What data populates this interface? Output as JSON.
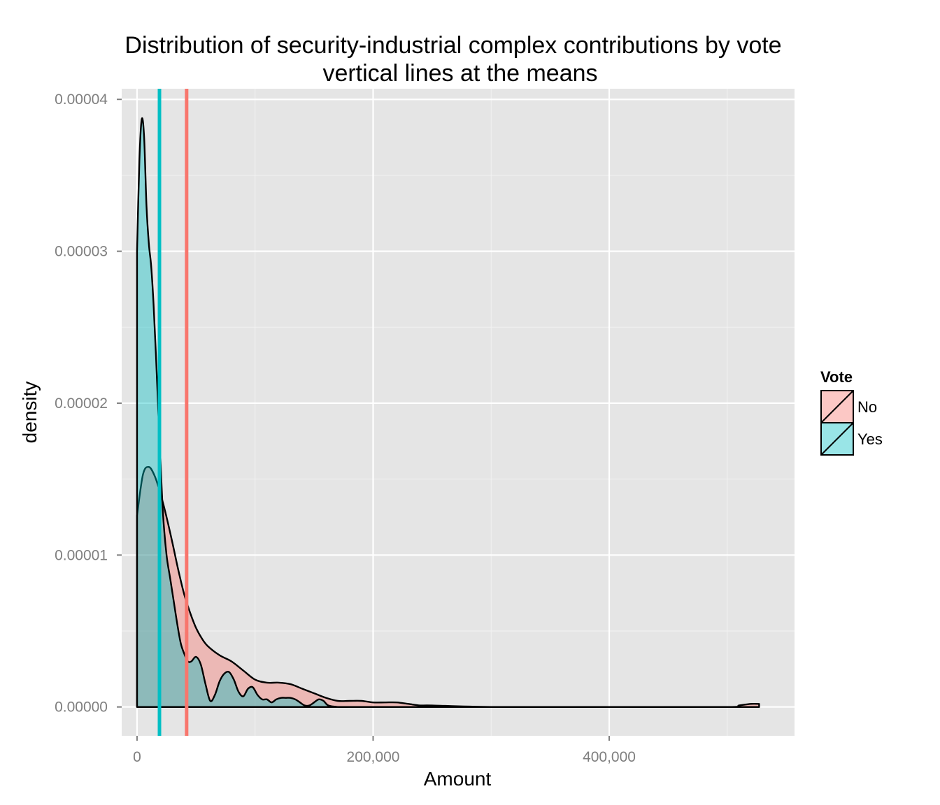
{
  "chart_data": {
    "type": "area",
    "title": "Distribution of security-industrial complex contributions by vote",
    "subtitle": "vertical lines at the means",
    "xlabel": "Amount",
    "ylabel": "density",
    "xlim": [
      -13000,
      557000
    ],
    "ylim": [
      -1.9e-06,
      4.07e-05
    ],
    "x_ticks": [
      0,
      200000,
      400000
    ],
    "x_tick_labels": [
      "0",
      "200,000",
      "400,000"
    ],
    "y_ticks": [
      0,
      1e-05,
      2e-05,
      3e-05,
      4e-05
    ],
    "y_tick_labels": [
      "0.00000",
      "0.00001",
      "0.00002",
      "0.00003",
      "0.00004"
    ],
    "grid": true,
    "legend": {
      "title": "Vote",
      "position": "right"
    },
    "series": [
      {
        "name": "No",
        "color": "#F8766D",
        "fill": "#F8766D",
        "fill_opacity": 0.4,
        "mean": 42000,
        "x": [
          0,
          5000,
          10000,
          15000,
          20000,
          25000,
          30000,
          35000,
          40000,
          45000,
          50000,
          55000,
          60000,
          70000,
          80000,
          90000,
          100000,
          110000,
          120000,
          130000,
          140000,
          150000,
          160000,
          170000,
          180000,
          190000,
          200000,
          210000,
          220000,
          230000,
          240000,
          250000,
          300000,
          400000,
          500000,
          510000,
          520000,
          527000
        ],
        "y": [
          1.26e-05,
          1.53e-05,
          1.58e-05,
          1.52e-05,
          1.4e-05,
          1.25e-05,
          1.08e-05,
          9e-06,
          7.4e-06,
          6.2e-06,
          5.2e-06,
          4.5e-06,
          4e-06,
          3.4e-06,
          3e-06,
          2.4e-06,
          1.8e-06,
          1.6e-06,
          1.6e-06,
          1.5e-06,
          1.2e-06,
          9e-07,
          6e-07,
          4e-07,
          4e-07,
          4e-07,
          3e-07,
          3e-07,
          3e-07,
          2e-07,
          1e-07,
          1e-07,
          0.0,
          0.0,
          0.0,
          1e-07,
          2e-07,
          2e-07
        ]
      },
      {
        "name": "Yes",
        "color": "#00BFC4",
        "fill": "#00BFC4",
        "fill_opacity": 0.4,
        "mean": 19000,
        "x": [
          0,
          2000,
          4000,
          6000,
          8000,
          10000,
          12000,
          14000,
          16000,
          18000,
          20000,
          22000,
          25000,
          28000,
          31000,
          34000,
          37000,
          40000,
          43000,
          46000,
          50000,
          54000,
          58000,
          62000,
          66000,
          70000,
          74000,
          78000,
          82000,
          86000,
          90000,
          94000,
          98000,
          102000,
          106000,
          110000,
          114000,
          118000,
          122000,
          126000,
          130000,
          134000,
          138000,
          142000,
          146000,
          150000,
          154000,
          158000,
          162000,
          170000,
          180000,
          200000,
          300000,
          400000,
          527000
        ],
        "y": [
          3e-05,
          3.6e-05,
          3.87e-05,
          3.75e-05,
          3.3e-05,
          3.05e-05,
          2.9e-05,
          2.65e-05,
          2.32e-05,
          1.95e-05,
          1.6e-05,
          1.27e-05,
          1e-05,
          8.5e-06,
          7e-06,
          5.5e-06,
          4.2e-06,
          3.5e-06,
          3e-06,
          3e-06,
          3.3e-06,
          2.8e-06,
          1.5e-06,
          4e-07,
          8e-07,
          1.7e-06,
          2.2e-06,
          2.3e-06,
          1.8e-06,
          1e-06,
          7e-07,
          1.2e-06,
          1.3e-06,
          8e-07,
          5e-07,
          5e-07,
          3e-07,
          5e-07,
          6e-07,
          6e-07,
          6e-07,
          5e-07,
          3e-07,
          1e-07,
          1e-07,
          3e-07,
          5e-07,
          4e-07,
          1e-07,
          0.0,
          0.0,
          0.0,
          0.0,
          0.0,
          0.0
        ]
      }
    ]
  }
}
